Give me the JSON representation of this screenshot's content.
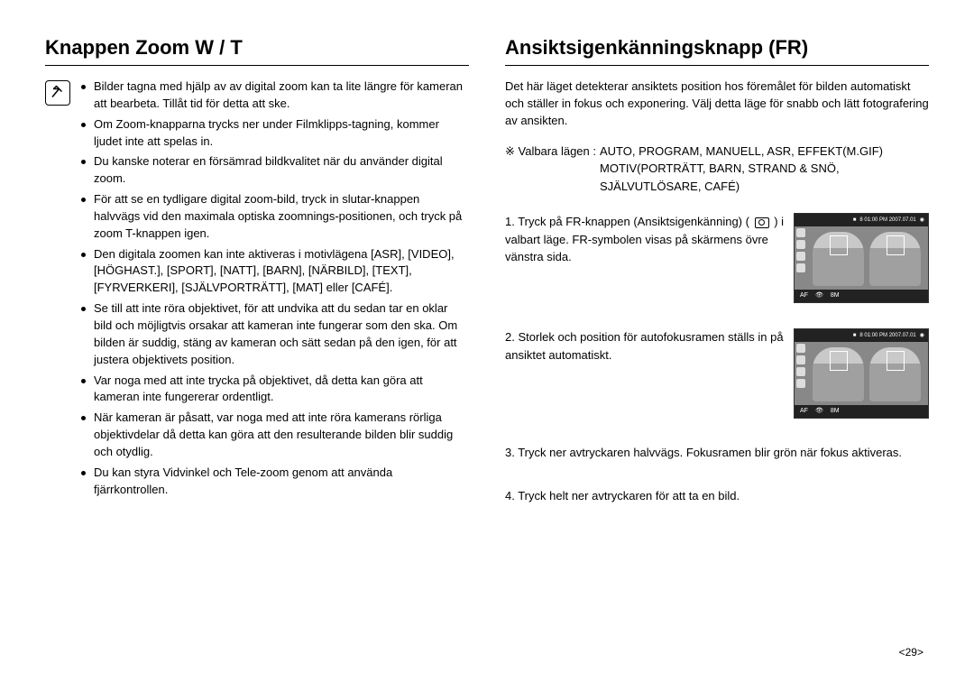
{
  "pageNumber": "<29>",
  "left": {
    "title": "Knappen Zoom W / T",
    "bullets": [
      "Bilder tagna med hjälp av av digital zoom kan ta lite längre för kameran att bearbeta. Tillåt tid för detta att ske.",
      "Om Zoom-knapparna trycks ner under Filmklipps-tagning, kommer ljudet inte att spelas in.",
      "Du kanske noterar en försämrad bildkvalitet när du använder digital zoom.",
      "För att se en tydligare digital zoom-bild, tryck in slutar-knappen halvvägs vid den maximala optiska zoomnings-positionen, och tryck på zoom T-knappen igen.",
      "Den digitala zoomen kan inte aktiveras i motivlägena [ASR], [VIDEO], [HÖGHAST.], [SPORT], [NATT], [BARN], [NÄRBILD], [TEXT], [FYRVERKERI], [SJÄLVPORTRÄTT], [MAT] eller [CAFÉ].",
      "Se till att inte röra objektivet, för att undvika att du sedan tar en oklar bild och möjligtvis orsakar att kameran inte fungerar som den ska. Om bilden är suddig, stäng av kameran och sätt sedan på den igen, för att justera objektivets position.",
      "Var noga med att inte trycka på objektivet, då detta kan göra att kameran inte fungererar ordentligt.",
      "När kameran är påsatt, var noga med att inte röra kamerans rörliga objektivdelar då detta kan göra att den resulterande bilden blir suddig och otydlig.",
      "Du kan styra Vidvinkel och Tele-zoom genom att använda fjärrkontrollen."
    ]
  },
  "right": {
    "title": "Ansiktsigenkänningsknapp (FR)",
    "intro": "Det här läget detekterar ansiktets position hos föremålet för bilden automatiskt och ställer in fokus och exponering. Välj detta läge för snabb och lätt fotografering av ansikten.",
    "modesLabel": "※ Valbara lägen :",
    "modes": "AUTO, PROGRAM, MANUELL, ASR, EFFEKT(M.GIF) MOTIV(PORTRÄTT, BARN, STRAND & SNÖ, SJÄLVUTLÖSARE, CAFÉ)",
    "steps": [
      {
        "n": "1.",
        "text": "Tryck på FR-knappen (Ansiktsigenkänning) (      ) i valbart läge. FR-symbolen visas på skärmens övre vänstra sida.",
        "hasThumb": true
      },
      {
        "n": "2.",
        "text": "Storlek och position för autofokusramen ställs in på ansiktet automatiskt.",
        "hasThumb": true
      },
      {
        "n": "3.",
        "text": "Tryck ner avtryckaren halvvägs. Fokusramen blir grön när fokus aktiveras.",
        "hasThumb": false
      },
      {
        "n": "4.",
        "text": "Tryck helt ner avtryckaren för att ta en bild.",
        "hasThumb": false
      }
    ],
    "thumb": {
      "topBar": "8   01:00 PM 2007.07.01",
      "bottomLeft": "AF",
      "bottomRight": "8M"
    }
  }
}
